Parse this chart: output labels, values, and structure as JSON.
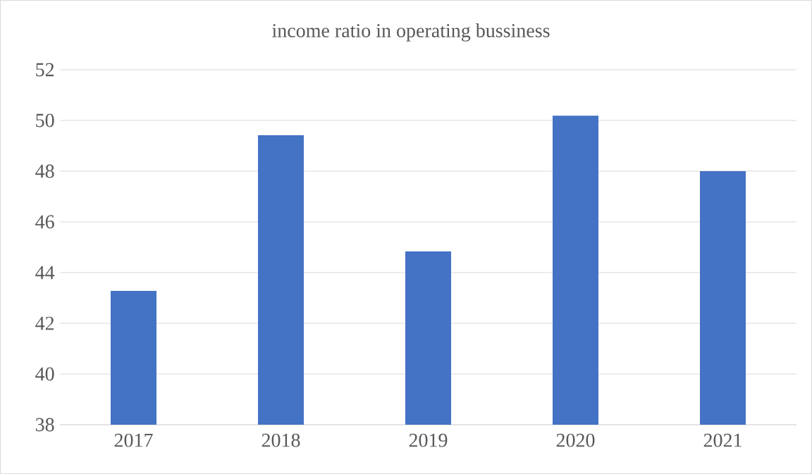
{
  "chart_data": {
    "type": "bar",
    "title": "income ratio in operating bussiness",
    "categories": [
      "2017",
      "2018",
      "2019",
      "2020",
      "2021"
    ],
    "values": [
      43.28,
      49.42,
      44.83,
      50.19,
      48.0
    ],
    "color": "#4472c4",
    "ylim": [
      38,
      52
    ],
    "yticks": [
      38,
      40,
      42,
      44,
      46,
      48,
      50,
      52
    ],
    "grid": "y"
  }
}
